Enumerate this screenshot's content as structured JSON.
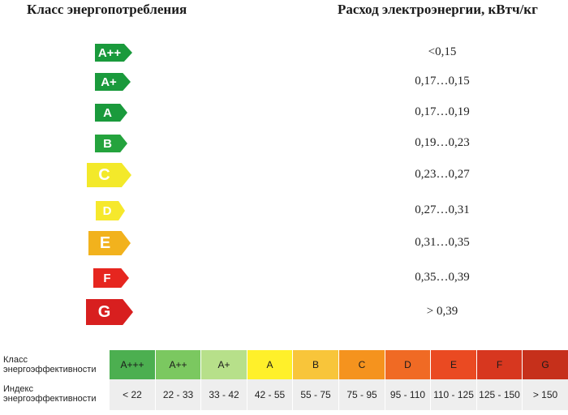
{
  "header": {
    "left_title": "Класс энергопотребления",
    "right_title": "Расход электроэнергии, кВтч/кг"
  },
  "classes": [
    {
      "label": "A++",
      "value": "<0,15",
      "color": "#1a9a3c"
    },
    {
      "label": "A+",
      "value": "0,17…0,15",
      "color": "#1a9a3c"
    },
    {
      "label": "A",
      "value": "0,17…0,19",
      "color": "#1a9a3c"
    },
    {
      "label": "B",
      "value": "0,19…0,23",
      "color": "#24a33d"
    },
    {
      "label": "C",
      "value": "0,23…0,27",
      "color": "#f3e92a"
    },
    {
      "label": "D",
      "value": "0,27…0,31",
      "color": "#f6e82c"
    },
    {
      "label": "E",
      "value": "0,31…0,35",
      "color": "#f2b21d"
    },
    {
      "label": "F",
      "value": "0,35…0,39",
      "color": "#e6261f"
    },
    {
      "label": "G",
      "value": "> 0,39",
      "color": "#d81f1f"
    }
  ],
  "table": {
    "class_label_line1": "Класс",
    "class_label_line2": "энергоэффективности",
    "index_label_line1": "Индекс",
    "index_label_line2": "энергоэффективности",
    "columns": [
      {
        "class": "A+++",
        "index": "< 22",
        "color": "#4caf50"
      },
      {
        "class": "A++",
        "index": "22 - 33",
        "color": "#7bc860"
      },
      {
        "class": "A+",
        "index": "33 - 42",
        "color": "#b7e08a"
      },
      {
        "class": "A",
        "index": "42 - 55",
        "color": "#fff02a"
      },
      {
        "class": "B",
        "index": "55 - 75",
        "color": "#f8c53a"
      },
      {
        "class": "C",
        "index": "75 - 95",
        "color": "#f5931e"
      },
      {
        "class": "D",
        "index": "95 - 110",
        "color": "#f06a24"
      },
      {
        "class": "E",
        "index": "110 - 125",
        "color": "#ea4a22"
      },
      {
        "class": "F",
        "index": "125 - 150",
        "color": "#d7371f"
      },
      {
        "class": "G",
        "index": "> 150",
        "color": "#c6301b"
      }
    ]
  }
}
